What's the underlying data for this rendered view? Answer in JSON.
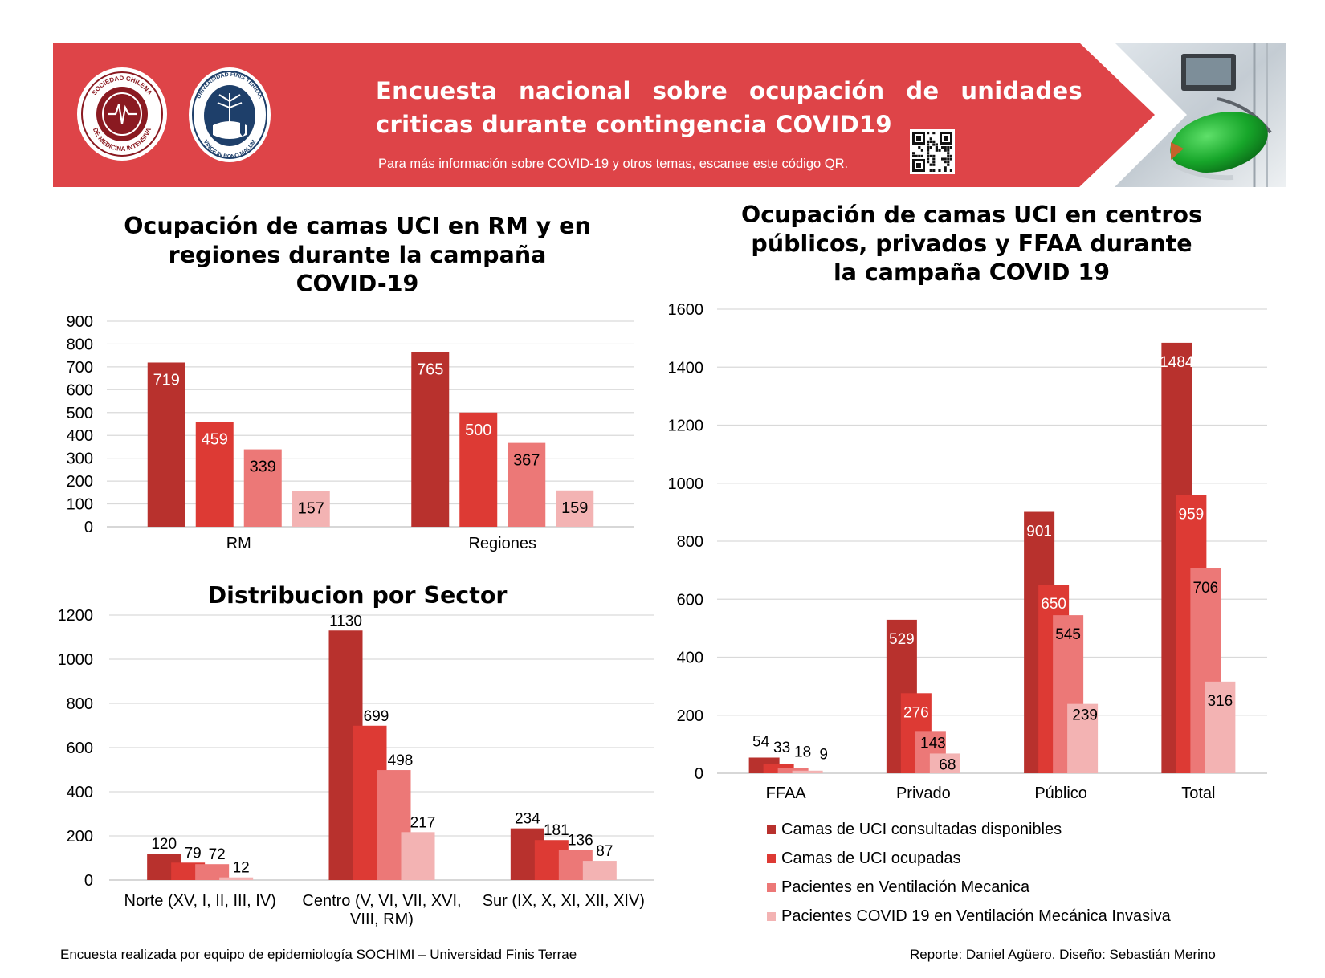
{
  "header": {
    "title": "Encuesta nacional sobre ocupación de unidades criticas durante contingencia COVID19",
    "subtitle": "Para más información sobre COVID-19 y otros temas, escanee este código QR.",
    "logo1_text": "SOCIEDAD CHILENA DE MEDICINA INTENSIVA",
    "logo2_text": "UNIVERSIDAD FINIS TERRAE · VINCE IN BONO MALUM",
    "accent_color": "#de4448"
  },
  "chart_titles": {
    "rm": "Ocupación de camas UCI en RM y en regiones durante la campaña COVID-19",
    "sector": "Distribucion por Sector",
    "centros": "Ocupación de camas UCI en centros públicos, privados y FFAA durante la campaña COVID 19"
  },
  "legend": [
    {
      "label": "Camas de UCI consultadas disponibles",
      "color": "#b8312d"
    },
    {
      "label": "Camas de UCI ocupadas",
      "color": "#dd3a34"
    },
    {
      "label": "Pacientes en Ventilación Mecanica",
      "color": "#ec7877"
    },
    {
      "label": "Pacientes COVID 19 en Ventilación Mecánica Invasiva",
      "color": "#f3b3b3"
    }
  ],
  "footer": {
    "left": "Encuesta realizada por equipo de epidemiología SOCHIMI – Universidad Finis Terrae",
    "right": "Reporte: Daniel Agüero. Diseño: Sebastián Merino"
  },
  "chart_data": [
    {
      "id": "rm",
      "type": "bar",
      "title": "Ocupación de camas UCI en RM y en regiones durante la campaña COVID-19",
      "categories": [
        "RM",
        "Regiones"
      ],
      "ylim": [
        0,
        900
      ],
      "yticks": [
        0,
        100,
        200,
        300,
        400,
        500,
        600,
        700,
        800,
        900
      ],
      "grid": true,
      "series": [
        {
          "name": "Camas de UCI consultadas disponibles",
          "values": [
            719,
            765
          ]
        },
        {
          "name": "Camas de UCI ocupadas",
          "values": [
            459,
            500
          ]
        },
        {
          "name": "Pacientes en Ventilación Mecanica",
          "values": [
            339,
            367
          ]
        },
        {
          "name": "Pacientes COVID 19 en Ventilación Mecánica Invasiva",
          "values": [
            157,
            159
          ]
        }
      ]
    },
    {
      "id": "sector",
      "type": "bar",
      "title": "Distribucion por Sector",
      "categories": [
        "Norte (XV, I, II, III, IV)",
        "Centro (V, VI, VII, XVI, VIII, RM)",
        "Sur (IX, X, XI, XII, XIV)"
      ],
      "ylim": [
        0,
        1200
      ],
      "yticks": [
        0,
        200,
        400,
        600,
        800,
        1000,
        1200
      ],
      "grid": true,
      "series": [
        {
          "name": "Camas de UCI consultadas disponibles",
          "values": [
            120,
            1130,
            234
          ]
        },
        {
          "name": "Camas de UCI ocupadas",
          "values": [
            79,
            699,
            181
          ]
        },
        {
          "name": "Pacientes en Ventilación Mecanica",
          "values": [
            72,
            498,
            136
          ]
        },
        {
          "name": "Pacientes COVID 19 en Ventilación Mecánica Invasiva",
          "values": [
            12,
            217,
            87
          ]
        }
      ]
    },
    {
      "id": "centros",
      "type": "bar",
      "title": "Ocupación de camas UCI en centros públicos, privados y FFAA durante la campaña COVID 19",
      "categories": [
        "FFAA",
        "Privado",
        "Público",
        "Total"
      ],
      "ylim": [
        0,
        1600
      ],
      "yticks": [
        0,
        200,
        400,
        600,
        800,
        1000,
        1200,
        1400,
        1600
      ],
      "grid": true,
      "legend": "bottom",
      "series": [
        {
          "name": "Camas de UCI consultadas disponibles",
          "values": [
            54,
            529,
            901,
            1484
          ]
        },
        {
          "name": "Camas de UCI ocupadas",
          "values": [
            33,
            276,
            650,
            959
          ]
        },
        {
          "name": "Pacientes en Ventilación Mecanica",
          "values": [
            18,
            143,
            545,
            706
          ]
        },
        {
          "name": "Pacientes COVID 19 en Ventilación Mecánica Invasiva",
          "values": [
            9,
            68,
            239,
            316
          ]
        }
      ]
    }
  ]
}
